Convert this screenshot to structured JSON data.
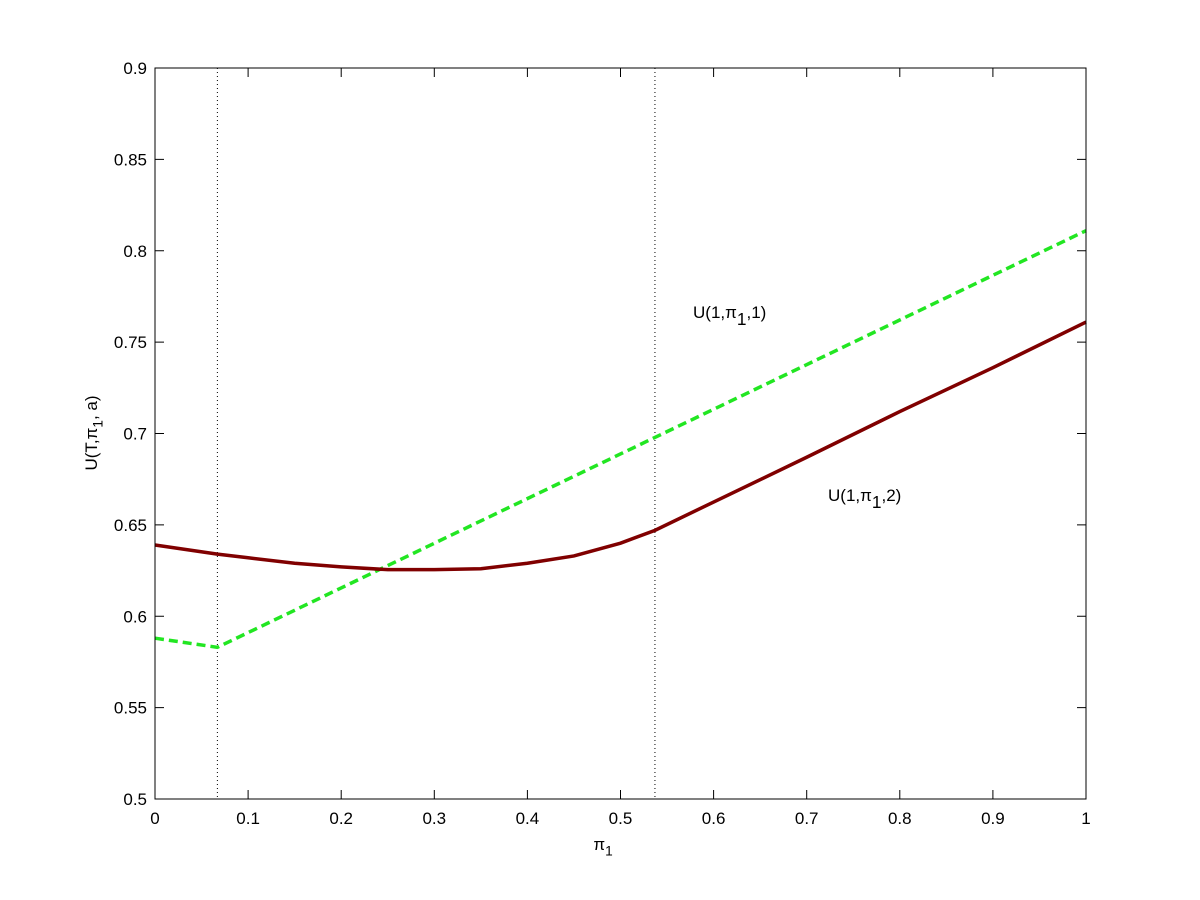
{
  "chart_data": {
    "type": "line",
    "xlabel": [
      {
        "text": "π"
      },
      {
        "text": "1",
        "baseline": "sub"
      }
    ],
    "ylabel": [
      {
        "text": "U(T,π"
      },
      {
        "text": "1",
        "baseline": "sub"
      },
      {
        "text": ", a)"
      }
    ],
    "annotations": [
      [
        {
          "text": "U(1,π"
        },
        {
          "text": "1",
          "baseline": "sub"
        },
        {
          "text": ",1)"
        }
      ],
      [
        {
          "text": "U(1,π"
        },
        {
          "text": "1",
          "baseline": "sub"
        },
        {
          "text": ",2)"
        }
      ]
    ],
    "series": [
      {
        "color": "#22e622",
        "linestyle": "dashed",
        "x": [
          0,
          0.067,
          1
        ],
        "values": [
          0.588,
          0.583,
          0.811
        ]
      },
      {
        "color": "#800000",
        "linestyle": "solid",
        "x": [
          0,
          0.067,
          0.1,
          0.15,
          0.2,
          0.25,
          0.3,
          0.35,
          0.4,
          0.45,
          0.5,
          0.537,
          0.6,
          0.7,
          0.8,
          0.9,
          1
        ],
        "values": [
          0.639,
          0.634,
          0.632,
          0.629,
          0.627,
          0.6255,
          0.6255,
          0.626,
          0.629,
          0.633,
          0.64,
          0.647,
          0.6625,
          0.687,
          0.712,
          0.736,
          0.761
        ]
      }
    ],
    "vlines": [
      0.067,
      0.537
    ],
    "xlim": [
      0,
      1
    ],
    "ylim": [
      0.5,
      0.9
    ],
    "xticks": [
      0,
      0.1,
      0.2,
      0.3,
      0.4,
      0.5,
      0.6,
      0.7,
      0.8,
      0.9,
      1
    ],
    "yticks": [
      0.5,
      0.55,
      0.6,
      0.65,
      0.7,
      0.75,
      0.8,
      0.85,
      0.9
    ]
  }
}
